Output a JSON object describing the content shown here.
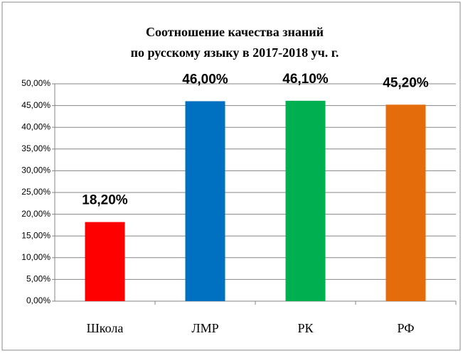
{
  "chart_data": {
    "type": "bar",
    "title": [
      "Соотношение качества знаний",
      "по русскому языку в 2017-2018 уч. г."
    ],
    "categories": [
      "Школа",
      "ЛМР",
      "РК",
      "РФ"
    ],
    "values": [
      18.2,
      46.0,
      46.1,
      45.2
    ],
    "value_labels": [
      "18,20%",
      "46,00%",
      "46,10%",
      "45,20%"
    ],
    "colors": [
      "#ff0000",
      "#0070c0",
      "#00b050",
      "#e46c0a"
    ],
    "ylim": [
      0,
      50
    ],
    "yticks": [
      {
        "value": 0,
        "label": "0,00%"
      },
      {
        "value": 5,
        "label": "5,00%"
      },
      {
        "value": 10,
        "label": "10,00%"
      },
      {
        "value": 15,
        "label": "15,00%"
      },
      {
        "value": 20,
        "label": "20,00%"
      },
      {
        "value": 25,
        "label": "25,00%"
      },
      {
        "value": 30,
        "label": "30,00%"
      },
      {
        "value": 35,
        "label": "35,00%"
      },
      {
        "value": 40,
        "label": "40,00%"
      },
      {
        "value": 45,
        "label": "45,00%"
      },
      {
        "value": 50,
        "label": "50,00%"
      }
    ],
    "grid": true
  }
}
